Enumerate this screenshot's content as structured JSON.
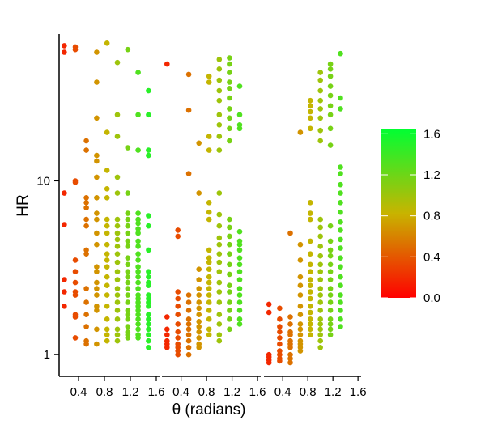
{
  "chart_data": {
    "type": "scatter",
    "title": "",
    "xlabel": "θ (radians)",
    "ylabel": "HR",
    "y_scale": "log",
    "ylim": [
      0.75,
      70
    ],
    "y_ticks": [
      1,
      10
    ],
    "y_tick_labels": [
      "1",
      "10"
    ],
    "x_ticks": [
      0.4,
      0.8,
      1.2,
      1.6
    ],
    "x_tick_labels": [
      "0.4",
      "0.8",
      "1.2",
      "1.6"
    ],
    "xlim": [
      0.1,
      1.65
    ],
    "panels": 3,
    "color_scale": {
      "low_color": "#ff0000",
      "mid_color": "#c8b400",
      "high_color": "#00ff33",
      "range": [
        0.0,
        1.65
      ],
      "ticks": [
        0.0,
        0.4,
        0.8,
        1.2,
        1.6
      ],
      "tick_labels": [
        "0.0",
        "0.4",
        "0.8",
        "1.2",
        "1.6"
      ]
    },
    "series": [
      {
        "panel": 1,
        "columns": [
          {
            "x": 0.18,
            "y": [
              60,
              55,
              8.5,
              5.6,
              2.7,
              2.3,
              1.9
            ]
          },
          {
            "x": 0.35,
            "y": [
              59,
              57,
              10,
              9.8,
              3.5,
              3.0,
              2.6,
              2.3,
              2.2,
              1.7,
              1.65,
              1.25
            ]
          },
          {
            "x": 0.52,
            "y": [
              17,
              15,
              8,
              7.5,
              7,
              6,
              5.5,
              4,
              3.8,
              2.4,
              2.0,
              1.7,
              1.45,
              1.2,
              1.15
            ]
          },
          {
            "x": 0.68,
            "y": [
              55,
              37,
              23,
              14,
              13,
              10.5,
              8,
              6.5,
              6,
              5,
              4.3,
              3.2,
              3,
              2.6,
              2.4,
              2.2,
              1.9,
              1.8,
              1.4,
              1.15
            ]
          },
          {
            "x": 0.84,
            "y": [
              62,
              19,
              11.5,
              9,
              8,
              6,
              5.5,
              5,
              4.3,
              3.8,
              3.5,
              3.2,
              2.8,
              2.5,
              2.2,
              1.9,
              1.6,
              1.4,
              1.3,
              1.2
            ]
          },
          {
            "x": 1.0,
            "y": [
              48,
              24,
              18,
              10.5,
              8.5,
              6,
              5.5,
              5,
              4.6,
              4.2,
              3.8,
              3.4,
              3,
              2.7,
              2.4,
              2.2,
              2,
              1.8,
              1.6,
              1.4,
              1.3,
              1.2
            ]
          },
          {
            "x": 1.16,
            "y": [
              57,
              15.5,
              8.5,
              6.5,
              6,
              5.5,
              5,
              4.5,
              4.2,
              3.6,
              3.3,
              3,
              2.8,
              2.6,
              2.4,
              2.2,
              2,
              1.8,
              1.7,
              1.6,
              1.45,
              1.35,
              1.3,
              1.25
            ]
          },
          {
            "x": 1.32,
            "y": [
              42,
              24,
              15,
              6.5,
              6,
              5.7,
              5.3,
              5,
              4.5,
              4.2,
              3.8,
              3.5,
              3.2,
              3,
              2.8,
              2.6,
              2.4,
              2.2,
              2.1,
              2,
              1.9,
              1.8,
              1.7,
              1.6,
              1.5,
              1.4,
              1.3,
              1.25
            ]
          },
          {
            "x": 1.48,
            "y": [
              33,
              24,
              15,
              14,
              6.3,
              5.5,
              4,
              3,
              2.8,
              2.6,
              2.5,
              2.2,
              2.1,
              2,
              1.9,
              1.7,
              1.6,
              1.5,
              1.4,
              1.3,
              1.2,
              1.1
            ]
          }
        ]
      },
      {
        "panel": 2,
        "columns": [
          {
            "x": 0.18,
            "y": [
              47,
              1.65,
              1.4,
              1.3,
              1.2,
              1.15,
              1.1
            ]
          },
          {
            "x": 0.35,
            "y": [
              5.2,
              4.8,
              2.3,
              2.1,
              1.9,
              1.7,
              1.5,
              1.35,
              1.25,
              1.15,
              1.1,
              1.05,
              1.0
            ]
          },
          {
            "x": 0.52,
            "y": [
              41,
              25.5,
              11,
              2.2,
              2.0,
              1.8,
              1.6,
              1.5,
              1.4,
              1.3,
              1.2,
              1.1,
              1.0
            ]
          },
          {
            "x": 0.68,
            "y": [
              16.5,
              8.5,
              3.1,
              2.7,
              2.4,
              2.2,
              2.0,
              1.85,
              1.7,
              1.55,
              1.45,
              1.35,
              1.25,
              1.15,
              1.1
            ]
          },
          {
            "x": 0.84,
            "y": [
              40,
              37,
              18,
              15,
              7.5,
              6.6,
              6,
              4,
              3.6,
              3.4,
              3.1,
              2.8,
              2.6,
              2.4,
              2.2,
              2.0,
              1.8,
              1.6,
              1.4,
              1.3
            ]
          },
          {
            "x": 1.0,
            "y": [
              50,
              44,
              38,
              33,
              29,
              24,
              21,
              18,
              15,
              8.5,
              6.4,
              5.5,
              4.7,
              4.3,
              3.8,
              3.4,
              3.0,
              2.6,
              2.3,
              2.0,
              1.7,
              1.5,
              1.3,
              1.2
            ]
          },
          {
            "x": 1.16,
            "y": [
              51,
              47,
              42,
              37,
              34,
              30,
              26,
              23,
              20,
              17,
              6,
              5.4,
              4.8,
              4.3,
              3.8,
              3.3,
              2.9,
              2.5,
              2.3,
              2.0,
              1.8,
              1.6,
              1.4
            ]
          },
          {
            "x": 1.32,
            "y": [
              35,
              24,
              21,
              20,
              5.1,
              4.5,
              4.3,
              4,
              3.6,
              3.3,
              3.0,
              2.7,
              2.4,
              2.2,
              2.0,
              1.8,
              1.6,
              1.5
            ]
          }
        ]
      },
      {
        "panel": 3,
        "columns": [
          {
            "x": 0.18,
            "y": [
              1.95,
              1.75,
              1.0,
              0.97,
              0.93,
              0.9
            ]
          },
          {
            "x": 0.35,
            "y": [
              1.85,
              1.6,
              1.45,
              1.35,
              1.25,
              1.15,
              1.05,
              1.0,
              0.95,
              0.92
            ]
          },
          {
            "x": 0.52,
            "y": [
              5.0,
              1.65,
              1.5,
              1.35,
              1.3,
              1.2,
              1.15,
              1.1,
              1.0,
              0.95,
              0.9
            ]
          },
          {
            "x": 0.68,
            "y": [
              19,
              4.3,
              3.5,
              2.8,
              2.5,
              2.2,
              1.9,
              1.7,
              1.5,
              1.4,
              1.3,
              1.2,
              1.15,
              1.1,
              1.05
            ]
          },
          {
            "x": 0.84,
            "y": [
              29,
              27,
              25,
              23,
              20,
              7.5,
              6.5,
              6,
              4.5,
              3.8,
              3.3,
              3.0,
              2.7,
              2.5,
              2.3,
              2.1,
              1.9,
              1.75,
              1.6,
              1.5,
              1.4,
              1.3
            ]
          },
          {
            "x": 1.0,
            "y": [
              42,
              38,
              33,
              29,
              26,
              23,
              19.5,
              17,
              6,
              5.4,
              4.8,
              4.2,
              3.7,
              3.3,
              3.0,
              2.7,
              2.4,
              2.2,
              2.0,
              1.8,
              1.6,
              1.5,
              1.4,
              1.3,
              1.2,
              1.1
            ]
          },
          {
            "x": 1.16,
            "y": [
              47,
              44,
              40,
              35,
              31,
              27,
              24,
              20,
              16,
              5.5,
              4.5,
              4.0,
              3.7,
              3.3,
              3.0,
              2.7,
              2.4,
              2.2,
              2.0,
              1.8,
              1.6,
              1.5,
              1.4,
              1.3
            ]
          },
          {
            "x": 1.32,
            "y": [
              54,
              30,
              26,
              12,
              11,
              9.5,
              8.5,
              7.5,
              6.6,
              5.8,
              5.2,
              4.6,
              4.1,
              3.6,
              3.2,
              2.8,
              2.5,
              2.2,
              2.0,
              1.8,
              1.6,
              1.45
            ]
          }
        ]
      }
    ]
  }
}
